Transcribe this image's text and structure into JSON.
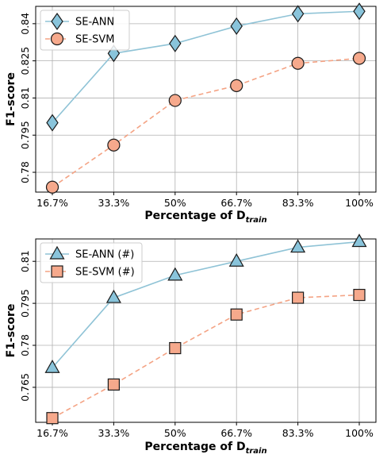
{
  "colors": {
    "ann": "#89c4db",
    "svm": "#f6a98c",
    "annLine": "#8fc3d6",
    "svmLine": "#f4a384",
    "grid": "#b0b0b0"
  },
  "chart_data": [
    {
      "type": "line",
      "categories": [
        "16.7%",
        "33.3%",
        "50%",
        "66.7%",
        "83.3%",
        "100%"
      ],
      "xlabel_main": "Percentage of D",
      "xlabel_sub": "train",
      "ylabel": "F1-score",
      "ylim": [
        0.772,
        0.847
      ],
      "yticks": [
        0.78,
        0.795,
        0.81,
        0.825,
        0.84
      ],
      "ytick_labels": [
        "0.78",
        "0.795",
        "0.81",
        "0.825",
        "0.84"
      ],
      "grid": true,
      "legend": "top-left",
      "series": [
        {
          "name": "SE-ANN",
          "marker": "diamond",
          "values": [
            0.8,
            0.828,
            0.832,
            0.839,
            0.844,
            0.845
          ]
        },
        {
          "name": "SE-SVM",
          "marker": "circle",
          "values": [
            0.774,
            0.791,
            0.809,
            0.815,
            0.824,
            0.826
          ]
        }
      ]
    },
    {
      "type": "line",
      "categories": [
        "16.7%",
        "33.3%",
        "50%",
        "66.7%",
        "83.3%",
        "100%"
      ],
      "xlabel_main": "Percentage of D",
      "xlabel_sub": "train",
      "ylabel": "F1-score",
      "ylim": [
        0.7525,
        0.818
      ],
      "yticks": [
        0.765,
        0.78,
        0.795,
        0.81
      ],
      "ytick_labels": [
        "0.765",
        "0.78",
        "0.795",
        "0.81"
      ],
      "grid": true,
      "legend": "top-left",
      "series": [
        {
          "name": "SE-ANN (#)",
          "marker": "triangle",
          "values": [
            0.772,
            0.797,
            0.805,
            0.81,
            0.815,
            0.817
          ]
        },
        {
          "name": "SE-SVM (#)",
          "marker": "square",
          "values": [
            0.754,
            0.766,
            0.779,
            0.791,
            0.797,
            0.798
          ]
        }
      ]
    }
  ]
}
